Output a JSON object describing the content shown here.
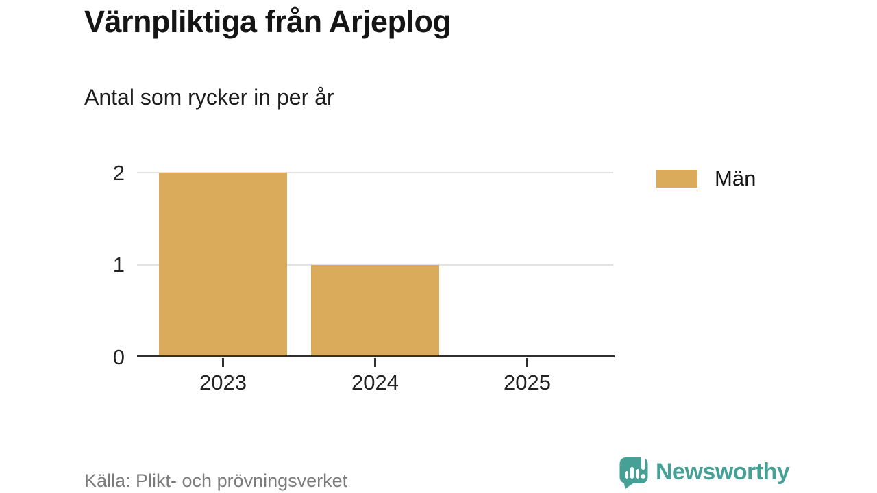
{
  "chart": {
    "title": "Värnpliktiga från Arjeplog",
    "subtitle": "Antal som rycker in per år"
  },
  "chart_data": {
    "type": "bar",
    "categories": [
      "2023",
      "2024",
      "2025"
    ],
    "series": [
      {
        "name": "Män",
        "values": [
          2,
          1,
          0
        ],
        "color": "#DAAB5B"
      }
    ],
    "title": "Värnpliktiga från Arjeplog",
    "subtitle": "Antal som rycker in per år",
    "xlabel": "",
    "ylabel": "",
    "ylim": [
      0,
      2
    ],
    "yticks": [
      0,
      1,
      2
    ],
    "grid": true,
    "legend_position": "right"
  },
  "legend": {
    "items": [
      {
        "label": "Män",
        "color": "#DAAB5B"
      }
    ]
  },
  "footer": {
    "source": "Källa: Plikt- och prövningsverket",
    "brand": "Newsworthy"
  },
  "colors": {
    "bar": "#DAAB5B",
    "brand_teal": "#46A096",
    "grid": "#E3E3E3",
    "axis": "#2E2E2E",
    "text": "#151515",
    "muted": "#7B7B7B"
  }
}
